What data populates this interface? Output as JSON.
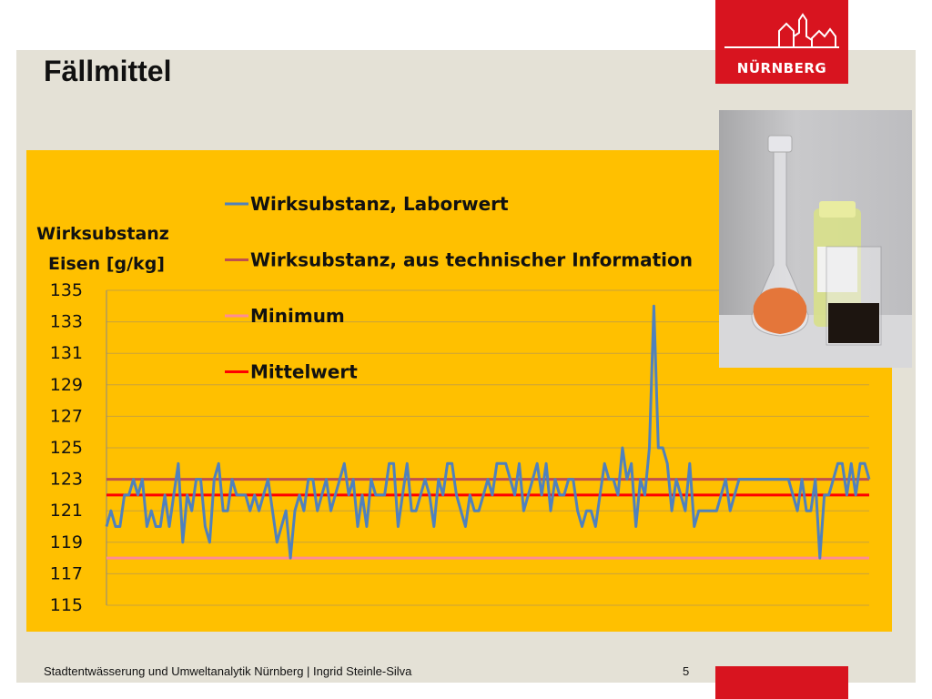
{
  "slide": {
    "title": "Fällmittel",
    "footer": "Stadtentwässerung und Umweltanalytik Nürnberg  |  Ingrid Steinle-Silva",
    "page_number": "5"
  },
  "logo": {
    "text": "NÜRNBERG",
    "color": "#d8141f"
  },
  "chart_data": {
    "type": "line",
    "ylabel": [
      "Wirksubstanz",
      "Eisen [g/kg]"
    ],
    "ylim": [
      115,
      135
    ],
    "yticks": [
      115,
      117,
      119,
      121,
      123,
      125,
      127,
      129,
      131,
      133,
      135
    ],
    "grid": true,
    "legend_position": "top-left",
    "series": [
      {
        "name": "Wirksubstanz, Laborwert",
        "color": "#4f81bd",
        "values": [
          120,
          121,
          120,
          120,
          122,
          122,
          123,
          122,
          123,
          120,
          121,
          120,
          120,
          122,
          120,
          122,
          124,
          119,
          122,
          121,
          123,
          123,
          120,
          119,
          123,
          124,
          121,
          121,
          123,
          122,
          122,
          122,
          121,
          122,
          121,
          122,
          123,
          121,
          119,
          120,
          121,
          118,
          121,
          122,
          121,
          123,
          123,
          121,
          122,
          123,
          121,
          122,
          123,
          124,
          122,
          123,
          120,
          122,
          120,
          123,
          122,
          122,
          122,
          124,
          124,
          120,
          122,
          124,
          121,
          121,
          122,
          123,
          122,
          120,
          123,
          122,
          124,
          124,
          122,
          121,
          120,
          122,
          121,
          121,
          122,
          123,
          122,
          124,
          124,
          124,
          123,
          122,
          124,
          121,
          122,
          123,
          124,
          122,
          124,
          121,
          123,
          122,
          122,
          123,
          123,
          121,
          120,
          121,
          121,
          120,
          122,
          124,
          123,
          123,
          122,
          125,
          123,
          124,
          120,
          123,
          122,
          125,
          134,
          125,
          125,
          124,
          121,
          123,
          122,
          121,
          124,
          120,
          121,
          121,
          121,
          121,
          121,
          122,
          123,
          121,
          122,
          123,
          123,
          123,
          123,
          123,
          123,
          123,
          123,
          123,
          123,
          123,
          123,
          122,
          121,
          123,
          121,
          121,
          123,
          118,
          122,
          122,
          123,
          124,
          124,
          122,
          124,
          122,
          124,
          124,
          123
        ]
      },
      {
        "name": "Wirksubstanz, aus technischer Information",
        "color": "#c0504d",
        "values": [
          123
        ]
      },
      {
        "name": "Minimum",
        "color": "#ff8c94",
        "values": [
          118
        ]
      },
      {
        "name": "Mittelwert",
        "color": "#ff0000",
        "values": [
          122
        ]
      }
    ]
  }
}
